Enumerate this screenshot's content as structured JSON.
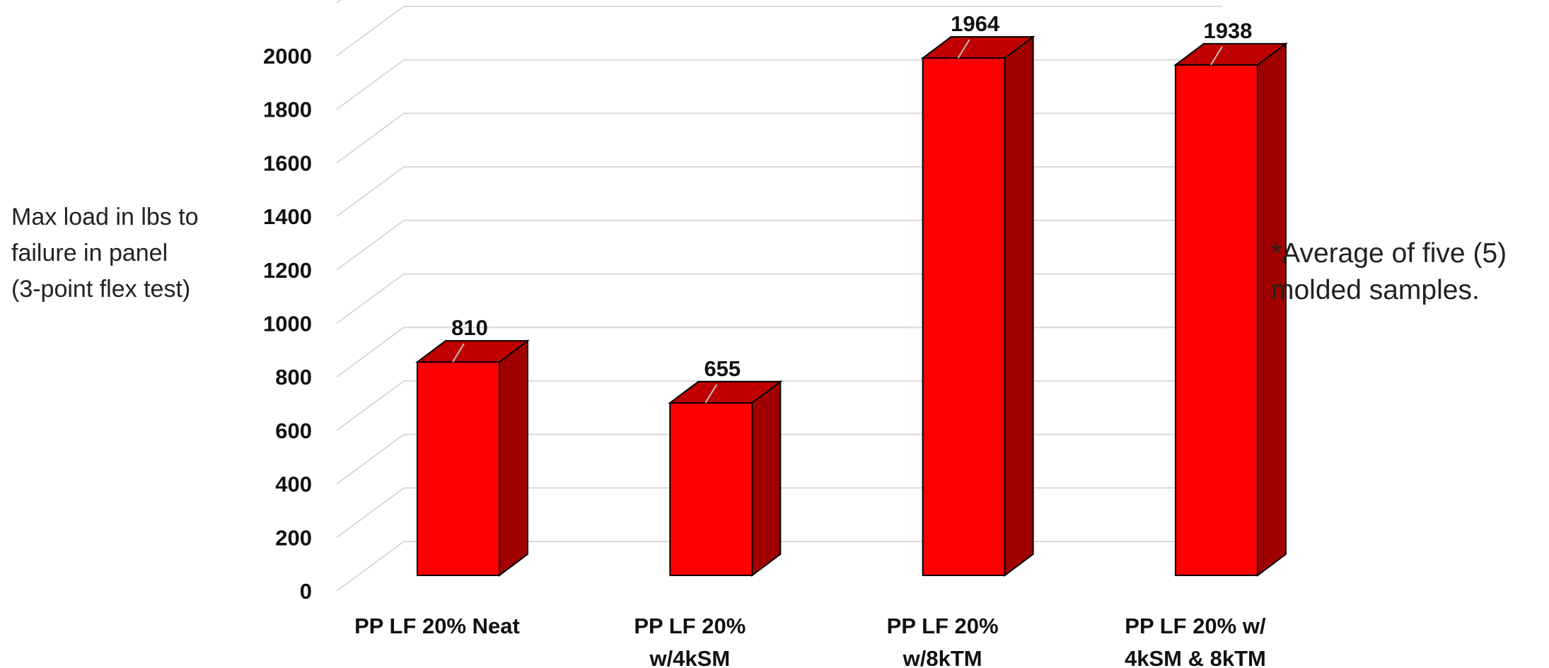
{
  "chart_data": {
    "type": "bar",
    "categories": [
      [
        "PP LF 20% Neat"
      ],
      [
        "PP LF 20%",
        "w/4kSM"
      ],
      [
        "PP LF 20%",
        "w/8kTM"
      ],
      [
        "PP LF 20% w/",
        "4kSM & 8kTM"
      ]
    ],
    "values": [
      810,
      655,
      1964,
      1938
    ],
    "data_labels": [
      "810",
      "655",
      "1964",
      "1938"
    ],
    "ylabel_lines": [
      "Max load in lbs to",
      "failure in panel",
      "(3-point flex test)"
    ],
    "ylim": [
      0,
      2000
    ],
    "yticks": [
      0,
      200,
      400,
      600,
      800,
      1000,
      1200,
      1400,
      1600,
      1800,
      2000
    ],
    "grid": true,
    "bar_style": "3d-column",
    "colors": {
      "bar_front": "#ff0000",
      "bar_top": "#c00000",
      "bar_side": "#a00000",
      "grid": "#d9d9d9"
    }
  },
  "annotation": {
    "lines": [
      "*Average of five (5)",
      "molded samples."
    ]
  }
}
